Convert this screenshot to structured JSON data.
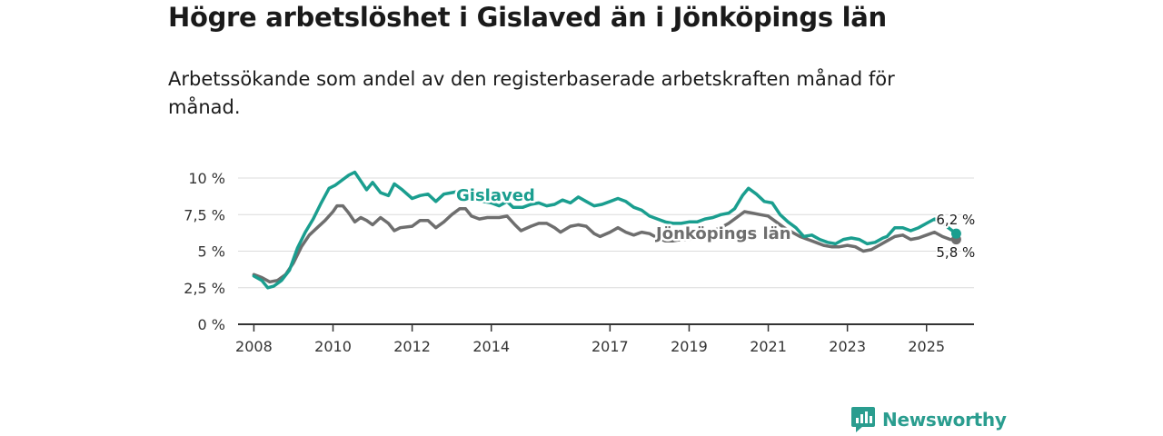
{
  "header": {
    "title": "Högre arbetslöshet i Gislaved än i Jönköpings län",
    "subtitle": "Arbetssökande som andel av den registerbaserade arbetskraften månad för månad."
  },
  "brand": {
    "name": "Newsworthy",
    "icon": "bar-chart-speech-icon",
    "color": "#2a9d8f"
  },
  "chart_data": {
    "type": "line",
    "title": "Högre arbetslöshet i Gislaved än i Jönköpings län",
    "subtitle": "Arbetssökande som andel av den registerbaserade arbetskraften månad för månad.",
    "xlabel": "",
    "ylabel": "",
    "grid": true,
    "ylim": [
      0,
      10
    ],
    "xlim": [
      2007.6,
      2026.2
    ],
    "y_ticks": [
      {
        "value": 0,
        "label": "0 %"
      },
      {
        "value": 2.5,
        "label": "2,5 %"
      },
      {
        "value": 5,
        "label": "5 %"
      },
      {
        "value": 7.5,
        "label": "7,5 %"
      },
      {
        "value": 10,
        "label": "10 %"
      }
    ],
    "x_ticks": [
      {
        "value": 2008,
        "label": "2008"
      },
      {
        "value": 2010,
        "label": "2010"
      },
      {
        "value": 2012,
        "label": "2012"
      },
      {
        "value": 2014,
        "label": "2014"
      },
      {
        "value": 2017,
        "label": "2017"
      },
      {
        "value": 2019,
        "label": "2019"
      },
      {
        "value": 2021,
        "label": "2021"
      },
      {
        "value": 2023,
        "label": "2023"
      },
      {
        "value": 2025,
        "label": "2025"
      }
    ],
    "series": [
      {
        "name": "Jönköpings län",
        "color": "#6e6e6e",
        "end_label": "5,8 %",
        "points": [
          [
            2008.0,
            3.4
          ],
          [
            2008.2,
            3.2
          ],
          [
            2008.4,
            2.9
          ],
          [
            2008.6,
            3.0
          ],
          [
            2008.8,
            3.4
          ],
          [
            2009.0,
            4.2
          ],
          [
            2009.2,
            5.3
          ],
          [
            2009.4,
            6.1
          ],
          [
            2009.6,
            6.6
          ],
          [
            2009.8,
            7.1
          ],
          [
            2010.0,
            7.7
          ],
          [
            2010.1,
            8.1
          ],
          [
            2010.25,
            8.1
          ],
          [
            2010.4,
            7.6
          ],
          [
            2010.55,
            7.0
          ],
          [
            2010.7,
            7.3
          ],
          [
            2010.85,
            7.1
          ],
          [
            2011.0,
            6.8
          ],
          [
            2011.2,
            7.3
          ],
          [
            2011.4,
            6.9
          ],
          [
            2011.55,
            6.4
          ],
          [
            2011.7,
            6.6
          ],
          [
            2012.0,
            6.7
          ],
          [
            2012.2,
            7.1
          ],
          [
            2012.4,
            7.1
          ],
          [
            2012.6,
            6.6
          ],
          [
            2012.8,
            7.0
          ],
          [
            2013.0,
            7.5
          ],
          [
            2013.2,
            7.9
          ],
          [
            2013.35,
            7.9
          ],
          [
            2013.5,
            7.4
          ],
          [
            2013.7,
            7.2
          ],
          [
            2013.9,
            7.3
          ],
          [
            2014.2,
            7.3
          ],
          [
            2014.4,
            7.4
          ],
          [
            2014.6,
            6.8
          ],
          [
            2014.75,
            6.4
          ],
          [
            2015.0,
            6.7
          ],
          [
            2015.2,
            6.9
          ],
          [
            2015.4,
            6.9
          ],
          [
            2015.6,
            6.6
          ],
          [
            2015.75,
            6.3
          ],
          [
            2016.0,
            6.7
          ],
          [
            2016.2,
            6.8
          ],
          [
            2016.4,
            6.7
          ],
          [
            2016.6,
            6.2
          ],
          [
            2016.75,
            6.0
          ],
          [
            2017.0,
            6.3
          ],
          [
            2017.2,
            6.6
          ],
          [
            2017.4,
            6.3
          ],
          [
            2017.6,
            6.1
          ],
          [
            2017.8,
            6.3
          ],
          [
            2018.0,
            6.2
          ],
          [
            2018.2,
            5.9
          ],
          [
            2018.4,
            5.7
          ],
          [
            2018.6,
            5.7
          ],
          [
            2018.8,
            5.8
          ],
          [
            2019.0,
            5.8
          ],
          [
            2019.2,
            6.0
          ],
          [
            2019.4,
            6.2
          ],
          [
            2019.6,
            6.4
          ],
          [
            2019.8,
            6.6
          ],
          [
            2020.0,
            6.9
          ],
          [
            2020.2,
            7.3
          ],
          [
            2020.4,
            7.7
          ],
          [
            2020.6,
            7.6
          ],
          [
            2020.8,
            7.5
          ],
          [
            2021.0,
            7.4
          ],
          [
            2021.2,
            7.0
          ],
          [
            2021.4,
            6.6
          ],
          [
            2021.6,
            6.3
          ],
          [
            2021.8,
            6.0
          ],
          [
            2022.0,
            5.8
          ],
          [
            2022.2,
            5.6
          ],
          [
            2022.4,
            5.4
          ],
          [
            2022.6,
            5.3
          ],
          [
            2022.8,
            5.3
          ],
          [
            2023.0,
            5.4
          ],
          [
            2023.2,
            5.3
          ],
          [
            2023.4,
            5.0
          ],
          [
            2023.6,
            5.1
          ],
          [
            2023.8,
            5.4
          ],
          [
            2024.0,
            5.7
          ],
          [
            2024.2,
            6.0
          ],
          [
            2024.4,
            6.1
          ],
          [
            2024.6,
            5.8
          ],
          [
            2024.8,
            5.9
          ],
          [
            2025.0,
            6.1
          ],
          [
            2025.2,
            6.3
          ],
          [
            2025.4,
            6.0
          ],
          [
            2025.6,
            5.8
          ],
          [
            2025.75,
            5.8
          ]
        ]
      },
      {
        "name": "Gislaved",
        "color": "#1a9e8f",
        "end_label": "6,2 %",
        "points": [
          [
            2008.0,
            3.3
          ],
          [
            2008.2,
            3.0
          ],
          [
            2008.35,
            2.5
          ],
          [
            2008.5,
            2.6
          ],
          [
            2008.7,
            3.0
          ],
          [
            2008.9,
            3.7
          ],
          [
            2009.1,
            5.2
          ],
          [
            2009.3,
            6.3
          ],
          [
            2009.5,
            7.2
          ],
          [
            2009.7,
            8.3
          ],
          [
            2009.9,
            9.3
          ],
          [
            2010.05,
            9.5
          ],
          [
            2010.25,
            9.9
          ],
          [
            2010.4,
            10.2
          ],
          [
            2010.55,
            10.4
          ],
          [
            2010.7,
            9.8
          ],
          [
            2010.85,
            9.2
          ],
          [
            2011.0,
            9.7
          ],
          [
            2011.2,
            9.0
          ],
          [
            2011.4,
            8.8
          ],
          [
            2011.55,
            9.6
          ],
          [
            2011.75,
            9.2
          ],
          [
            2012.0,
            8.6
          ],
          [
            2012.2,
            8.8
          ],
          [
            2012.4,
            8.9
          ],
          [
            2012.6,
            8.4
          ],
          [
            2012.8,
            8.9
          ],
          [
            2013.0,
            9.0
          ],
          [
            2013.2,
            9.1
          ],
          [
            2013.4,
            9.0
          ],
          [
            2013.6,
            8.5
          ],
          [
            2013.8,
            8.4
          ],
          [
            2014.0,
            8.3
          ],
          [
            2014.2,
            8.1
          ],
          [
            2014.4,
            8.4
          ],
          [
            2014.55,
            8.0
          ],
          [
            2014.8,
            8.0
          ],
          [
            2015.0,
            8.2
          ],
          [
            2015.2,
            8.3
          ],
          [
            2015.4,
            8.1
          ],
          [
            2015.6,
            8.2
          ],
          [
            2015.8,
            8.5
          ],
          [
            2016.0,
            8.3
          ],
          [
            2016.2,
            8.7
          ],
          [
            2016.4,
            8.4
          ],
          [
            2016.6,
            8.1
          ],
          [
            2016.8,
            8.2
          ],
          [
            2017.0,
            8.4
          ],
          [
            2017.2,
            8.6
          ],
          [
            2017.4,
            8.4
          ],
          [
            2017.6,
            8.0
          ],
          [
            2017.8,
            7.8
          ],
          [
            2018.0,
            7.4
          ],
          [
            2018.2,
            7.2
          ],
          [
            2018.4,
            7.0
          ],
          [
            2018.6,
            6.9
          ],
          [
            2018.8,
            6.9
          ],
          [
            2019.0,
            7.0
          ],
          [
            2019.2,
            7.0
          ],
          [
            2019.4,
            7.2
          ],
          [
            2019.6,
            7.3
          ],
          [
            2019.8,
            7.5
          ],
          [
            2020.0,
            7.6
          ],
          [
            2020.15,
            7.9
          ],
          [
            2020.35,
            8.8
          ],
          [
            2020.5,
            9.3
          ],
          [
            2020.7,
            8.9
          ],
          [
            2020.9,
            8.4
          ],
          [
            2021.1,
            8.3
          ],
          [
            2021.3,
            7.5
          ],
          [
            2021.5,
            7.0
          ],
          [
            2021.7,
            6.6
          ],
          [
            2021.9,
            6.0
          ],
          [
            2022.1,
            6.1
          ],
          [
            2022.3,
            5.8
          ],
          [
            2022.5,
            5.6
          ],
          [
            2022.7,
            5.5
          ],
          [
            2022.9,
            5.8
          ],
          [
            2023.1,
            5.9
          ],
          [
            2023.3,
            5.8
          ],
          [
            2023.5,
            5.5
          ],
          [
            2023.7,
            5.6
          ],
          [
            2023.9,
            5.9
          ],
          [
            2024.0,
            6.0
          ],
          [
            2024.2,
            6.6
          ],
          [
            2024.4,
            6.6
          ],
          [
            2024.6,
            6.4
          ],
          [
            2024.8,
            6.6
          ],
          [
            2025.0,
            6.9
          ],
          [
            2025.2,
            7.2
          ],
          [
            2025.4,
            7.0
          ],
          [
            2025.55,
            6.6
          ],
          [
            2025.75,
            6.2
          ]
        ]
      }
    ]
  }
}
